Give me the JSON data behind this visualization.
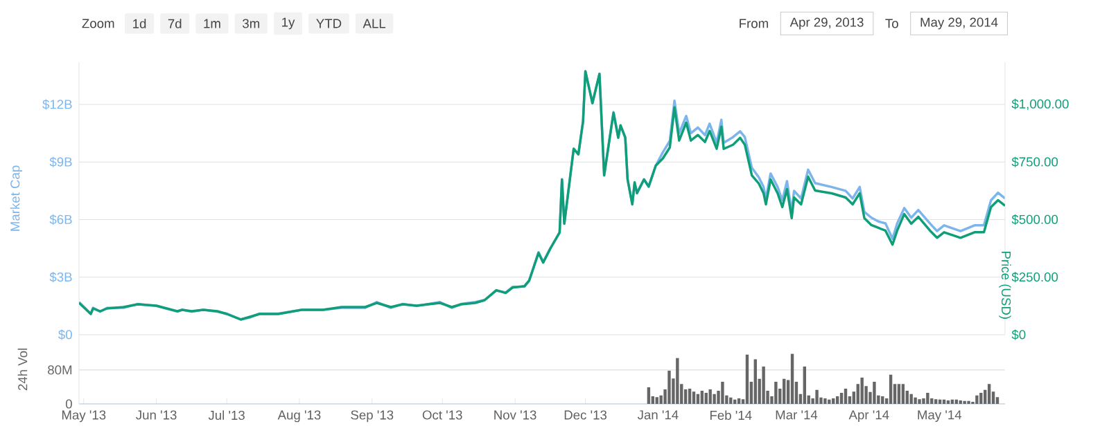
{
  "chart_data": [
    {
      "type": "line",
      "annotations": [
        "Zoom",
        "1d",
        "7d",
        "1m",
        "3m",
        "1y",
        "YTD",
        "ALL",
        "From",
        "Apr 29, 2013",
        "To",
        "May 29, 2014"
      ],
      "x": [
        "2013-04-29",
        "2013-05-04",
        "2013-05-05",
        "2013-05-08",
        "2013-05-11",
        "2013-05-18",
        "2013-05-24",
        "2013-06-01",
        "2013-06-10",
        "2013-06-12",
        "2013-06-16",
        "2013-06-21",
        "2013-06-27",
        "2013-07-01",
        "2013-07-07",
        "2013-07-11",
        "2013-07-15",
        "2013-07-23",
        "2013-08-02",
        "2013-08-11",
        "2013-08-19",
        "2013-08-29",
        "2013-09-03",
        "2013-09-09",
        "2013-09-14",
        "2013-09-20",
        "2013-09-30",
        "2013-10-05",
        "2013-10-09",
        "2013-10-15",
        "2013-10-19",
        "2013-10-24",
        "2013-10-28",
        "2013-10-31",
        "2013-11-05",
        "2013-11-07",
        "2013-11-11",
        "2013-11-13",
        "2013-11-16",
        "2013-11-20",
        "2013-11-21",
        "2013-11-22",
        "2013-11-26",
        "2013-11-28",
        "2013-11-30",
        "2013-12-01",
        "2013-12-04",
        "2013-12-07",
        "2013-12-09",
        "2013-12-12",
        "2013-12-13",
        "2013-12-15",
        "2013-12-16",
        "2013-12-18",
        "2013-12-19",
        "2013-12-21",
        "2013-12-22",
        "2013-12-23",
        "2013-12-26",
        "2013-12-28",
        "2013-12-31",
        "2014-01-03",
        "2014-01-06",
        "2014-01-08",
        "2014-01-10",
        "2014-01-13",
        "2014-01-15",
        "2014-01-18",
        "2014-01-21",
        "2014-01-23",
        "2014-01-26",
        "2014-01-28",
        "2014-01-29",
        "2014-02-02",
        "2014-02-05",
        "2014-02-07",
        "2014-02-10",
        "2014-02-13",
        "2014-02-15",
        "2014-02-16",
        "2014-02-18",
        "2014-02-21",
        "2014-02-23",
        "2014-02-25",
        "2014-02-27",
        "2014-02-28",
        "2014-03-03",
        "2014-03-06",
        "2014-03-09",
        "2014-03-16",
        "2014-03-22",
        "2014-03-25",
        "2014-03-28",
        "2014-03-30",
        "2014-04-02",
        "2014-04-05",
        "2014-04-08",
        "2014-04-11",
        "2014-04-13",
        "2014-04-16",
        "2014-04-19",
        "2014-04-22",
        "2014-04-27",
        "2014-04-30",
        "2014-05-03",
        "2014-05-10",
        "2014-05-16",
        "2014-05-20",
        "2014-05-23",
        "2014-05-26",
        "2014-05-29"
      ],
      "series": [
        {
          "color": "#7cb5ec",
          "values": [
            1.7,
            1.1,
            1.4,
            1.2,
            1.4,
            1.4,
            1.6,
            1.5,
            1.2,
            1.3,
            1.2,
            1.3,
            1.2,
            1.1,
            0.8,
            0.9,
            1.1,
            1.1,
            1.3,
            1.3,
            1.4,
            1.4,
            1.7,
            1.4,
            1.6,
            1.5,
            1.7,
            1.4,
            1.6,
            1.7,
            1.8,
            2.3,
            2.2,
            2.5,
            2.5,
            2.8,
            4.3,
            3.8,
            4.5,
            5.3,
            8.1,
            5.8,
            9.7,
            9.4,
            11.1,
            13.7,
            12.1,
            13.6,
            8.3,
            10.8,
            11.6,
            10.3,
            10.9,
            10.3,
            8.1,
            6.8,
            7.9,
            7.4,
            8.1,
            7.7,
            8.8,
            9.5,
            10.1,
            12.2,
            10.5,
            11.4,
            10.5,
            10.8,
            10.4,
            11.0,
            10.0,
            11.2,
            10.0,
            10.3,
            10.6,
            10.3,
            8.7,
            8.2,
            7.7,
            7.1,
            8.4,
            7.7,
            7.0,
            8.0,
            6.4,
            7.5,
            7.1,
            8.6,
            7.9,
            7.7,
            7.5,
            7.1,
            7.7,
            6.4,
            6.1,
            5.9,
            5.8,
            5.0,
            5.8,
            6.6,
            6.1,
            6.5,
            5.8,
            5.4,
            5.7,
            5.4,
            5.7,
            5.7,
            7.0,
            7.4,
            7.1
          ]
        },
        {
          "color": "#109e79",
          "axis": "y2",
          "values": [
            138,
            90,
            114,
            102,
            114,
            120,
            132,
            126,
            102,
            108,
            102,
            108,
            102,
            90,
            66,
            78,
            90,
            90,
            108,
            108,
            120,
            120,
            138,
            120,
            132,
            126,
            138,
            120,
            132,
            138,
            150,
            193,
            181,
            205,
            211,
            235,
            355,
            313,
            373,
            445,
            674,
            482,
            807,
            783,
            927,
            1144,
            1005,
            1132,
            692,
            897,
            963,
            855,
            909,
            855,
            674,
            566,
            662,
            614,
            674,
            644,
            734,
            765,
            813,
            987,
            843,
            921,
            843,
            867,
            837,
            885,
            807,
            903,
            807,
            825,
            855,
            825,
            692,
            656,
            614,
            566,
            674,
            614,
            554,
            632,
            506,
            596,
            566,
            686,
            626,
            614,
            596,
            566,
            614,
            506,
            476,
            464,
            452,
            391,
            452,
            524,
            482,
            512,
            452,
            421,
            445,
            421,
            445,
            445,
            554,
            584,
            560
          ]
        }
      ],
      "xlim": [
        "2013-04-29",
        "2014-05-29"
      ],
      "ylim": [
        0,
        14.2
      ],
      "yticks": [
        {
          "value": 0,
          "label": "$0"
        },
        {
          "value": 3,
          "label": "$3B"
        },
        {
          "value": 6,
          "label": "$6B"
        },
        {
          "value": 9,
          "label": "$9B"
        },
        {
          "value": 12,
          "label": "$12B"
        }
      ],
      "y2lim": [
        0,
        1183
      ],
      "y2ticks": [
        {
          "value": 0,
          "label": "$0"
        },
        {
          "value": 250,
          "label": "$250.00"
        },
        {
          "value": 500,
          "label": "$500.00"
        },
        {
          "value": 750,
          "label": "$750.00"
        },
        {
          "value": 1000,
          "label": "$1,000.00"
        }
      ],
      "ylabel": "Market Cap",
      "y2label": "Price (USD)",
      "grid": "y",
      "tick_labels": "y"
    },
    {
      "type": "bar",
      "x": [
        "2013-12-28T00:00",
        "2013-12-29T18:00",
        "2013-12-31T12:00",
        "2014-01-02T06:00",
        "2014-01-04T00:00",
        "2014-01-05T18:00",
        "2014-01-07T12:00",
        "2014-01-09T06:00",
        "2014-01-11T00:00",
        "2014-01-12T18:00",
        "2014-01-14T12:00",
        "2014-01-16T06:00",
        "2014-01-18T00:00",
        "2014-01-19T18:00",
        "2014-01-21T12:00",
        "2014-01-23T06:00",
        "2014-01-25T00:00",
        "2014-01-26T18:00",
        "2014-01-28T12:00",
        "2014-01-30T06:00",
        "2014-02-01T00:00",
        "2014-02-02T18:00",
        "2014-02-04T12:00",
        "2014-02-06T06:00",
        "2014-02-08T00:00",
        "2014-02-09T18:00",
        "2014-02-11T12:00",
        "2014-02-13T06:00",
        "2014-02-15T00:00",
        "2014-02-16T18:00",
        "2014-02-18T12:00",
        "2014-02-20T06:00",
        "2014-02-22T00:00",
        "2014-02-23T18:00",
        "2014-02-25T12:00",
        "2014-02-27T06:00",
        "2014-03-01T00:00",
        "2014-03-02T18:00",
        "2014-03-04T12:00",
        "2014-03-06T06:00",
        "2014-03-08T00:00",
        "2014-03-09T18:00",
        "2014-03-11T12:00",
        "2014-03-13T06:00",
        "2014-03-15T00:00",
        "2014-03-16T18:00",
        "2014-03-18T12:00",
        "2014-03-20T06:00",
        "2014-03-22T00:00",
        "2014-03-23T18:00",
        "2014-03-25T12:00",
        "2014-03-27T06:00",
        "2014-03-29T00:00",
        "2014-03-30T18:00",
        "2014-04-01T12:00",
        "2014-04-03T06:00",
        "2014-04-05T00:00",
        "2014-04-06T18:00",
        "2014-04-08T12:00",
        "2014-04-10T06:00",
        "2014-04-12T00:00",
        "2014-04-13T18:00",
        "2014-04-15T12:00",
        "2014-04-17T06:00",
        "2014-04-19T00:00",
        "2014-04-20T18:00",
        "2014-04-22T12:00",
        "2014-04-24T06:00",
        "2014-04-26T00:00",
        "2014-04-27T18:00",
        "2014-04-29T12:00",
        "2014-05-01T06:00",
        "2014-05-03T00:00",
        "2014-05-04T18:00",
        "2014-05-06T12:00",
        "2014-05-08T06:00",
        "2014-05-10T00:00",
        "2014-05-11T18:00",
        "2014-05-13T12:00",
        "2014-05-15T06:00",
        "2014-05-17T00:00",
        "2014-05-18T18:00",
        "2014-05-20T12:00",
        "2014-05-22T06:00",
        "2014-05-24T00:00",
        "2014-05-25T18:00"
      ],
      "values": [
        39,
        18,
        16,
        20,
        34,
        78,
        60,
        108,
        47,
        34,
        36,
        29,
        23,
        31,
        26,
        34,
        23,
        31,
        52,
        20,
        15,
        10,
        13,
        11,
        116,
        52,
        105,
        59,
        88,
        31,
        18,
        52,
        36,
        59,
        56,
        118,
        52,
        23,
        88,
        20,
        13,
        33,
        15,
        13,
        10,
        13,
        18,
        26,
        36,
        18,
        29,
        47,
        62,
        42,
        28,
        52,
        20,
        18,
        13,
        69,
        47,
        47,
        47,
        31,
        23,
        15,
        11,
        13,
        26,
        13,
        11,
        10,
        10,
        8,
        10,
        10,
        8,
        7,
        7,
        5,
        20,
        26,
        33,
        47,
        29,
        16
      ],
      "color": "#666666",
      "xlim": [
        "2013-04-29",
        "2014-05-29"
      ],
      "xticks": [
        {
          "value": "2013-05-01",
          "label": "May '13"
        },
        {
          "value": "2013-06-01",
          "label": "Jun '13"
        },
        {
          "value": "2013-07-01",
          "label": "Jul '13"
        },
        {
          "value": "2013-08-01",
          "label": "Aug '13"
        },
        {
          "value": "2013-09-01",
          "label": "Sep '13"
        },
        {
          "value": "2013-10-01",
          "label": "Oct '13"
        },
        {
          "value": "2013-11-01",
          "label": "Nov '13"
        },
        {
          "value": "2013-12-01",
          "label": "Dec '13"
        },
        {
          "value": "2014-01-01",
          "label": "Jan '14"
        },
        {
          "value": "2014-02-01",
          "label": "Feb '14"
        },
        {
          "value": "2014-03-01",
          "label": "Mar '14"
        },
        {
          "value": "2014-04-01",
          "label": "Apr '14"
        },
        {
          "value": "2014-05-01",
          "label": "May '14"
        }
      ],
      "ylim": [
        0,
        163
      ],
      "yticks": [
        0,
        {
          "value": 80,
          "label": "80M"
        }
      ],
      "ylabel": "24h Vol",
      "grid": "y"
    }
  ]
}
